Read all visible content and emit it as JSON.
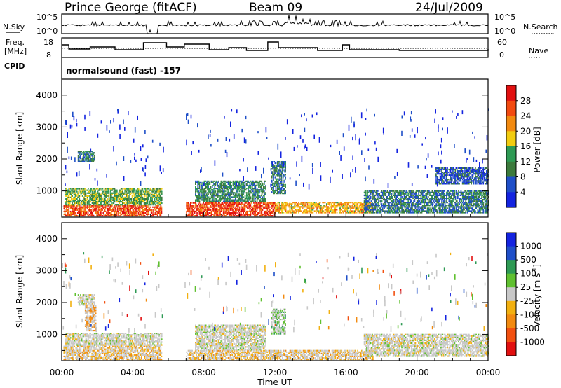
{
  "header": {
    "station": "Prince George (fitACF)",
    "beam": "Beam 09",
    "date": "24/Jul/2009"
  },
  "top_panels": {
    "nsky_label": "N.Sky",
    "nsky_ticks": [
      "10^5",
      "10^0"
    ],
    "nsearch_label": "N.Search",
    "nsearch_ticks": [
      "10^5",
      "10^0"
    ],
    "freq_label_1": "Freq.",
    "freq_label_2": "[MHz]",
    "freq_ticks": [
      "18",
      "8"
    ],
    "nave_label": "Nave",
    "nave_ticks": [
      "60",
      "0"
    ],
    "cpid_label": "CPID",
    "cpid_text": "normalsound (fast) -157"
  },
  "chart_data": [
    {
      "type": "heatmap",
      "name": "power",
      "xlabel": "",
      "ylabel": "Slant Range [km]",
      "yticks": [
        "1000",
        "2000",
        "3000",
        "4000"
      ],
      "ylim": [
        180,
        4500
      ],
      "xlim": [
        0,
        24
      ],
      "colorbar_label": "Power [dB]",
      "colorbar_ticks": [
        "4",
        "8",
        "12",
        "16",
        "20",
        "24",
        "28"
      ],
      "colorbar_range": [
        0,
        32
      ],
      "data_gap_ut": [
        5.7,
        6.9
      ],
      "scatter_regions": [
        {
          "t0": 0.1,
          "t1": 5.6,
          "r0": 200,
          "r1": 550,
          "level": 26
        },
        {
          "t0": 0.2,
          "t1": 5.6,
          "r0": 550,
          "r1": 1050,
          "level": 14
        },
        {
          "t0": 0.9,
          "t1": 1.8,
          "r0": 1900,
          "r1": 2250,
          "level": 10
        },
        {
          "t0": 7.0,
          "t1": 12.0,
          "r0": 200,
          "r1": 650,
          "level": 27
        },
        {
          "t0": 7.5,
          "t1": 11.5,
          "r0": 650,
          "r1": 1300,
          "level": 11
        },
        {
          "t0": 12.0,
          "t1": 17.5,
          "r0": 300,
          "r1": 650,
          "level": 20
        },
        {
          "t0": 11.8,
          "t1": 12.6,
          "r0": 900,
          "r1": 1900,
          "level": 9
        },
        {
          "t0": 17.0,
          "t1": 24.0,
          "r0": 300,
          "r1": 1000,
          "level": 9
        },
        {
          "t0": 21.0,
          "t1": 24.0,
          "r0": 1200,
          "r1": 1700,
          "level": 6
        }
      ]
    },
    {
      "type": "heatmap",
      "name": "velocity",
      "xlabel": "Time UT",
      "ylabel": "Slant Range [km]",
      "xticks": [
        "00:00",
        "04:00",
        "08:00",
        "12:00",
        "16:00",
        "20:00",
        "00:00"
      ],
      "yticks": [
        "1000",
        "2000",
        "3000",
        "4000"
      ],
      "ylim": [
        180,
        4500
      ],
      "xlim": [
        0,
        24
      ],
      "colorbar_label": "Velocity [m s^-1]",
      "colorbar_ticks": [
        "1000",
        "500",
        "100",
        "25",
        "-25",
        "-100",
        "-500",
        "-1000"
      ],
      "data_gap_ut": [
        5.7,
        6.9
      ],
      "scatter_regions": [
        {
          "t0": 0.1,
          "t1": 5.6,
          "r0": 200,
          "r1": 650,
          "level": -80
        },
        {
          "t0": 0.2,
          "t1": 5.6,
          "r0": 650,
          "r1": 1050,
          "level": 0
        },
        {
          "t0": 0.9,
          "t1": 1.8,
          "r0": 1900,
          "r1": 2250,
          "level": 0
        },
        {
          "t0": 1.3,
          "t1": 1.9,
          "r0": 1100,
          "r1": 1900,
          "level": -300
        },
        {
          "t0": 7.0,
          "t1": 17.5,
          "r0": 200,
          "r1": 500,
          "level": -80
        },
        {
          "t0": 7.5,
          "t1": 11.5,
          "r0": 500,
          "r1": 1300,
          "level": 0
        },
        {
          "t0": 11.8,
          "t1": 12.6,
          "r0": 1000,
          "r1": 1800,
          "level": 70
        },
        {
          "t0": 17.0,
          "t1": 24.0,
          "r0": 300,
          "r1": 1000,
          "level": 0
        }
      ]
    }
  ],
  "colors": {
    "power_scale": [
      "#1424e0",
      "#1f4fc8",
      "#3c7a3c",
      "#2e9a54",
      "#f2cc10",
      "#f28a10",
      "#f24a10",
      "#e21010"
    ],
    "velocity_scale": [
      "#e21010",
      "#f25010",
      "#f28a10",
      "#f2b010",
      "#c8c8c8",
      "#60c030",
      "#2e9a54",
      "#1f4fc8",
      "#1424e0"
    ]
  }
}
